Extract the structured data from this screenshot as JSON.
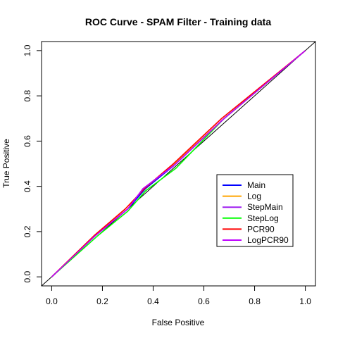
{
  "chart_data": {
    "type": "line",
    "title": "ROC Curve - SPAM Filter - Training data",
    "xlabel": "False Positive",
    "ylabel": "True Positive",
    "xlim": [
      -0.04,
      1.04
    ],
    "ylim": [
      -0.04,
      1.04
    ],
    "xticks": [
      "0.0",
      "0.2",
      "0.4",
      "0.6",
      "0.8",
      "1.0"
    ],
    "yticks": [
      "0.0",
      "0.2",
      "0.4",
      "0.6",
      "0.8",
      "1.0"
    ],
    "grid": false,
    "legend_position": "bottom-right",
    "reference_line": {
      "x": [
        -0.04,
        1.04
      ],
      "y": [
        -0.04,
        1.04
      ],
      "color": "#000000"
    },
    "series": [
      {
        "name": "Main",
        "color": "#0000ff",
        "x": [
          0.0,
          0.17,
          0.3,
          0.37,
          0.48,
          0.68,
          1.0
        ],
        "y": [
          0.0,
          0.18,
          0.3,
          0.39,
          0.49,
          0.7,
          1.0
        ]
      },
      {
        "name": "Log",
        "color": "#ffa500",
        "x": [
          0.0,
          0.17,
          0.29,
          0.37,
          0.48,
          0.68,
          1.0
        ],
        "y": [
          0.0,
          0.185,
          0.3,
          0.395,
          0.495,
          0.7,
          1.0
        ]
      },
      {
        "name": "StepMain",
        "color": "#a020f0",
        "x": [
          0.0,
          0.17,
          0.3,
          0.36,
          0.48,
          0.68,
          1.0
        ],
        "y": [
          0.0,
          0.18,
          0.3,
          0.39,
          0.49,
          0.7,
          1.0
        ]
      },
      {
        "name": "StepLog",
        "color": "#00ff00",
        "x": [
          0.0,
          0.18,
          0.3,
          0.37,
          0.49,
          0.68,
          1.0
        ],
        "y": [
          0.0,
          0.18,
          0.29,
          0.38,
          0.48,
          0.7,
          1.0
        ]
      },
      {
        "name": "PCR90",
        "color": "#ff0000",
        "x": [
          0.0,
          0.17,
          0.29,
          0.37,
          0.48,
          0.67,
          1.0
        ],
        "y": [
          0.0,
          0.185,
          0.3,
          0.395,
          0.5,
          0.7,
          1.0
        ]
      },
      {
        "name": "LogPCR90",
        "color": "#bf00ff",
        "x": [
          0.0,
          0.17,
          0.3,
          0.36,
          0.49,
          0.68,
          1.0
        ],
        "y": [
          0.0,
          0.18,
          0.3,
          0.39,
          0.5,
          0.7,
          1.0
        ]
      }
    ]
  }
}
